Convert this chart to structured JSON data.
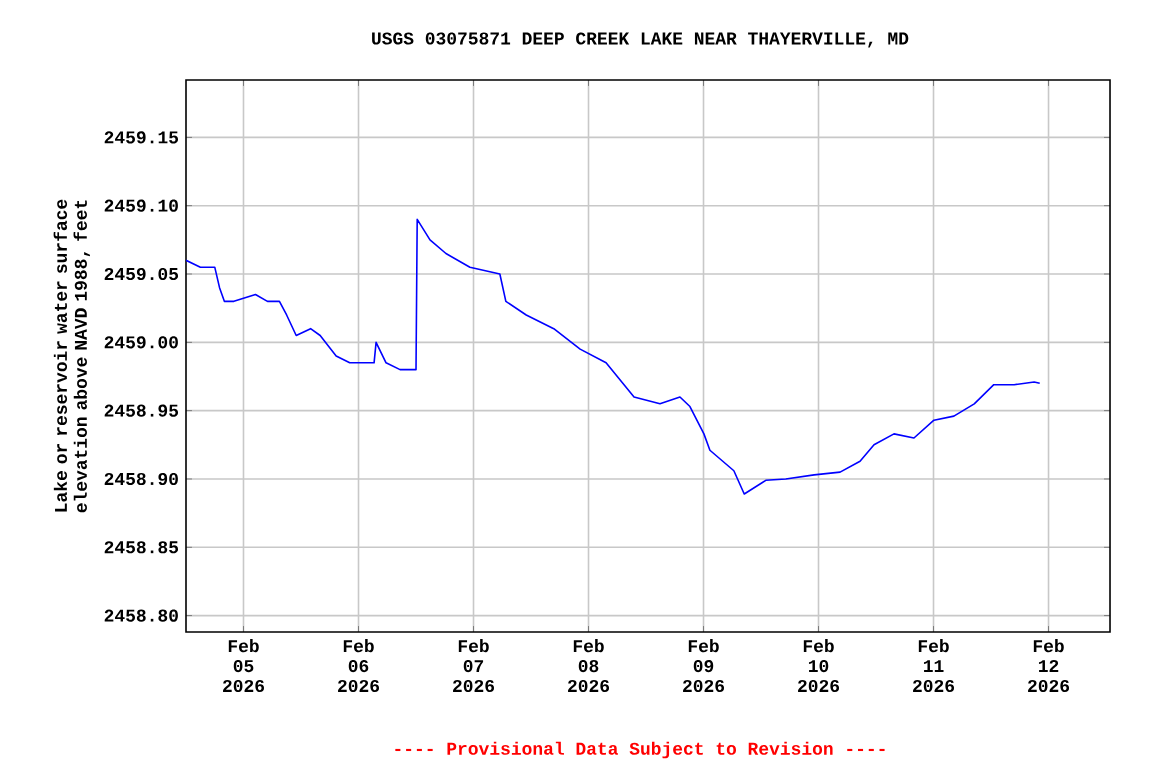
{
  "chart_data": {
    "type": "line",
    "title": "USGS 03075871 DEEP CREEK LAKE NEAR THAYERVILLE, MD",
    "ylabel": "Lake or reservoir water surface elevation above NAVD 1988, feet",
    "annotations": [
      "---- Provisional Data Subject to Revision ----"
    ],
    "x": [
      "2026-02-04T12:00",
      "2026-02-04T15:00",
      "2026-02-04T18:00",
      "2026-02-04T19:00",
      "2026-02-04T20:00",
      "2026-02-04T22:00",
      "2026-02-05T02:30",
      "2026-02-05T05:00",
      "2026-02-05T07:30",
      "2026-02-05T09:00",
      "2026-02-05T11:00",
      "2026-02-05T14:00",
      "2026-02-05T16:00",
      "2026-02-05T19:20",
      "2026-02-05T22:10",
      "2026-02-06T03:15",
      "2026-02-06T03:40",
      "2026-02-06T05:45",
      "2026-02-06T08:40",
      "2026-02-06T12:00",
      "2026-02-06T12:15",
      "2026-02-06T14:55",
      "2026-02-06T18:15",
      "2026-02-06T23:15",
      "2026-02-07T05:30",
      "2026-02-07T06:45",
      "2026-02-07T11:00",
      "2026-02-07T16:45",
      "2026-02-07T22:15",
      "2026-02-08T03:40",
      "2026-02-08T09:30",
      "2026-02-08T14:55",
      "2026-02-08T19:05",
      "2026-02-08T21:10",
      "2026-02-09T00:05",
      "2026-02-09T01:20",
      "2026-02-09T06:20",
      "2026-02-09T08:30",
      "2026-02-09T13:00",
      "2026-02-09T17:10",
      "2026-02-09T23:05",
      "2026-02-10T04:30",
      "2026-02-10T08:40",
      "2026-02-10T11:35",
      "2026-02-10T15:45",
      "2026-02-10T19:55",
      "2026-02-11T00:05",
      "2026-02-11T04:15",
      "2026-02-11T08:30",
      "2026-02-11T12:35",
      "2026-02-11T16:50",
      "2026-02-11T21:00",
      "2026-02-11T22:10"
    ],
    "series": [
      {
        "color": "#0000ff",
        "values": [
          2459.06,
          2459.055,
          2459.055,
          2459.04,
          2459.03,
          2459.03,
          2459.035,
          2459.03,
          2459.03,
          2459.02,
          2459.005,
          2459.01,
          2459.005,
          2458.99,
          2458.985,
          2458.985,
          2459.0,
          2458.985,
          2458.98,
          2458.98,
          2459.09,
          2459.075,
          2459.065,
          2459.055,
          2459.05,
          2459.03,
          2459.02,
          2459.01,
          2458.995,
          2458.985,
          2458.96,
          2458.955,
          2458.96,
          2458.953,
          2458.933,
          2458.921,
          2458.906,
          2458.889,
          2458.899,
          2458.9,
          2458.903,
          2458.905,
          2458.913,
          2458.925,
          2458.933,
          2458.93,
          2458.943,
          2458.946,
          2458.955,
          2458.969,
          2458.969,
          2458.971,
          2458.97
        ]
      }
    ],
    "xlim": [
      "2026-02-04T12:00",
      "2026-02-12T12:50"
    ],
    "xticks": [
      {
        "value": "2026-02-05",
        "label": "Feb 05 2026"
      },
      {
        "value": "2026-02-06",
        "label": "Feb 06 2026"
      },
      {
        "value": "2026-02-07",
        "label": "Feb 07 2026"
      },
      {
        "value": "2026-02-08",
        "label": "Feb 08 2026"
      },
      {
        "value": "2026-02-09",
        "label": "Feb 09 2026"
      },
      {
        "value": "2026-02-10",
        "label": "Feb 10 2026"
      },
      {
        "value": "2026-02-11",
        "label": "Feb 11 2026"
      },
      {
        "value": "2026-02-12",
        "label": "Feb 12 2026"
      }
    ],
    "ylim": [
      2458.788,
      2459.192
    ],
    "yticks": [
      {
        "value": 2458.8,
        "label": "2458.80"
      },
      {
        "value": 2458.85,
        "label": "2458.85"
      },
      {
        "value": 2458.9,
        "label": "2458.90"
      },
      {
        "value": 2458.95,
        "label": "2458.95"
      },
      {
        "value": 2459.0,
        "label": "2459.00"
      },
      {
        "value": 2459.05,
        "label": "2459.05"
      },
      {
        "value": 2459.1,
        "label": "2459.10"
      },
      {
        "value": 2459.15,
        "label": "2459.15"
      }
    ],
    "grid": true,
    "marker": "none",
    "line_style": "solid"
  }
}
